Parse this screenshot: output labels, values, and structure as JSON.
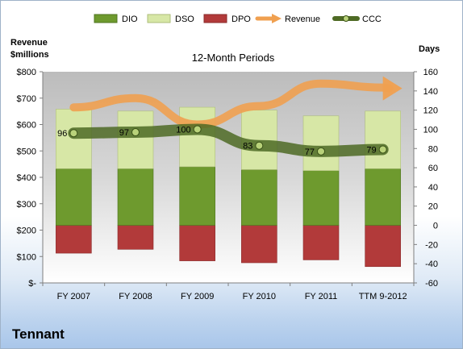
{
  "company": "Tennant",
  "colors": {
    "dio": "#6e9a2e",
    "dso": "#d7e7a6",
    "dpo": "#b23a3a",
    "revenue": "#f0a050",
    "ccc": "#4e6a24"
  },
  "chart_data": {
    "type": "bar",
    "title": "12-Month Periods",
    "left_axis_label": [
      "Revenue",
      "$millions"
    ],
    "right_axis_label": "Days",
    "categories": [
      "FY 2007",
      "FY 2008",
      "FY 2009",
      "FY 2010",
      "FY 2011",
      "TTM 9-2012"
    ],
    "left_ticks": [
      "$-",
      "$100",
      "$200",
      "$300",
      "$400",
      "$500",
      "$600",
      "$700",
      "$800"
    ],
    "right_ticks": [
      "-60",
      "-40",
      "-20",
      "0",
      "20",
      "40",
      "60",
      "80",
      "100",
      "120",
      "140",
      "160"
    ],
    "ylim_left": [
      0,
      800
    ],
    "ylim_right": [
      -60,
      160
    ],
    "legend": [
      "DIO",
      "DSO",
      "DPO",
      "Revenue",
      "CCC"
    ],
    "legend_position": "top",
    "grid": false,
    "series": [
      {
        "name": "DIO",
        "axis": "right",
        "values": [
          59,
          59,
          61,
          58,
          57,
          59
        ]
      },
      {
        "name": "DSO",
        "axis": "right",
        "values": [
          62,
          60,
          62,
          62,
          57,
          60
        ]
      },
      {
        "name": "DPO",
        "axis": "right",
        "values": [
          -29,
          -25,
          -37,
          -39,
          -36,
          -43
        ]
      },
      {
        "name": "Revenue",
        "axis": "left",
        "values": [
          665,
          700,
          600,
          670,
          755,
          740
        ]
      },
      {
        "name": "CCC",
        "axis": "right",
        "values": [
          96,
          97,
          100,
          83,
          77,
          79
        ]
      }
    ],
    "data_labels": [
      "96",
      "97",
      "100",
      "83",
      "77",
      "79"
    ]
  }
}
